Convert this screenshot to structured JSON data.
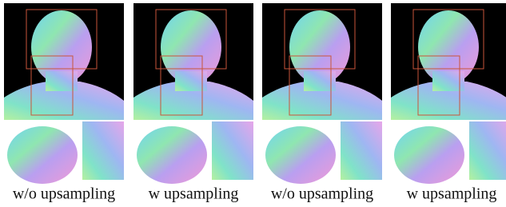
{
  "captions": [
    "w/o upsampling",
    "w upsampling",
    "w/o upsampling",
    "w upsampling"
  ]
}
